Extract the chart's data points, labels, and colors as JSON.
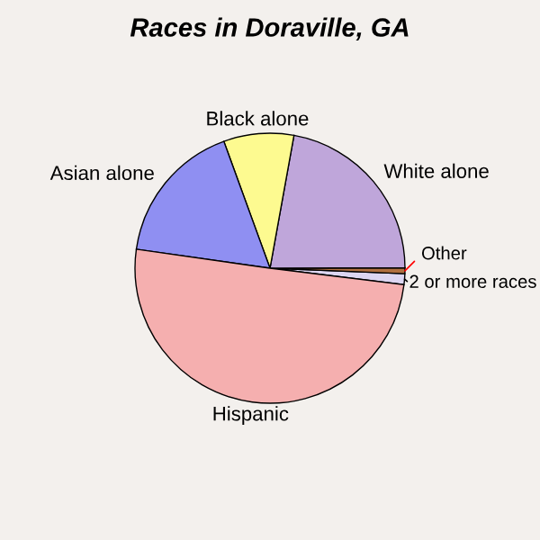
{
  "chart_data": {
    "type": "pie",
    "title": "Races in Doraville, GA",
    "categories": [
      "2 or more races",
      "Other",
      "White alone",
      "Black alone",
      "Asian alone",
      "Hispanic"
    ],
    "values": [
      1.3,
      0.7,
      22.1,
      8.4,
      17.2,
      50.3
    ],
    "colors": [
      "#dcd6f2",
      "#b07040",
      "#bfa6da",
      "#fdfa90",
      "#8f8ff2",
      "#f5afaf"
    ]
  }
}
